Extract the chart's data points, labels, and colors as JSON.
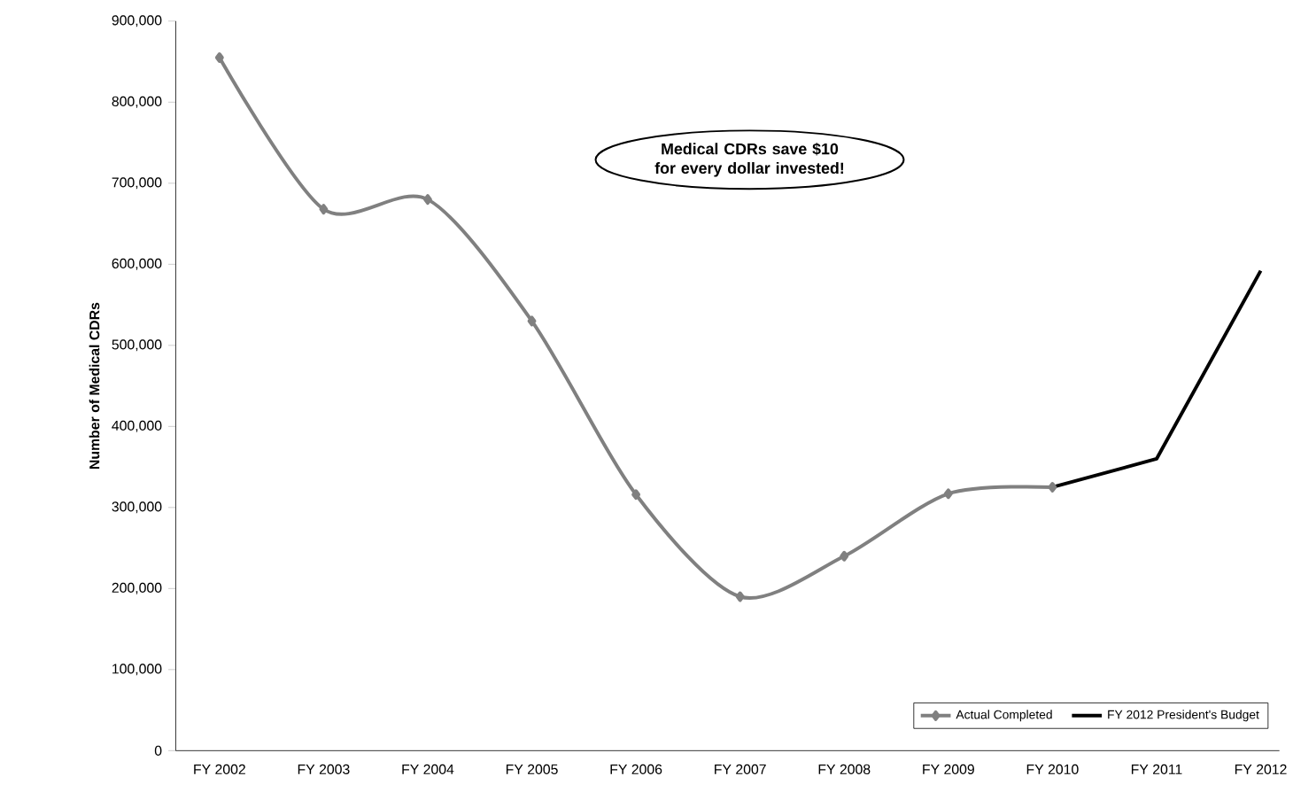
{
  "chart_data": {
    "type": "line",
    "ylabel": "Number of Medical CDRs",
    "categories": [
      "FY 2002",
      "FY 2003",
      "FY 2004",
      "FY 2005",
      "FY 2006",
      "FY 2007",
      "FY 2008",
      "FY 2009",
      "FY 2010",
      "FY 2011",
      "FY 2012"
    ],
    "series": [
      {
        "name": "Actual Completed",
        "color": "#808080",
        "marker": "diamond",
        "values": [
          855000,
          668000,
          680000,
          530000,
          316000,
          190000,
          240000,
          317000,
          325000,
          null,
          null
        ]
      },
      {
        "name": "FY 2012 President's Budget",
        "color": "#000000",
        "marker": "none",
        "values": [
          null,
          null,
          null,
          null,
          null,
          null,
          null,
          null,
          325000,
          360000,
          592000
        ]
      }
    ],
    "ylim": [
      0,
      900000
    ],
    "yticks": [
      {
        "value": 0,
        "label": "0"
      },
      {
        "value": 100000,
        "label": "100,000"
      },
      {
        "value": 200000,
        "label": "200,000"
      },
      {
        "value": 300000,
        "label": "300,000"
      },
      {
        "value": 400000,
        "label": "400,000"
      },
      {
        "value": 500000,
        "label": "500,000"
      },
      {
        "value": 600000,
        "label": "600,000"
      },
      {
        "value": 700000,
        "label": "700,000"
      },
      {
        "value": 800000,
        "label": "800,000"
      },
      {
        "value": 900000,
        "label": "900,000"
      }
    ],
    "legend": "bottom right",
    "line_style": "solid",
    "annotations": [
      "Medical CDRs save $10 for every dollar invested!"
    ]
  }
}
